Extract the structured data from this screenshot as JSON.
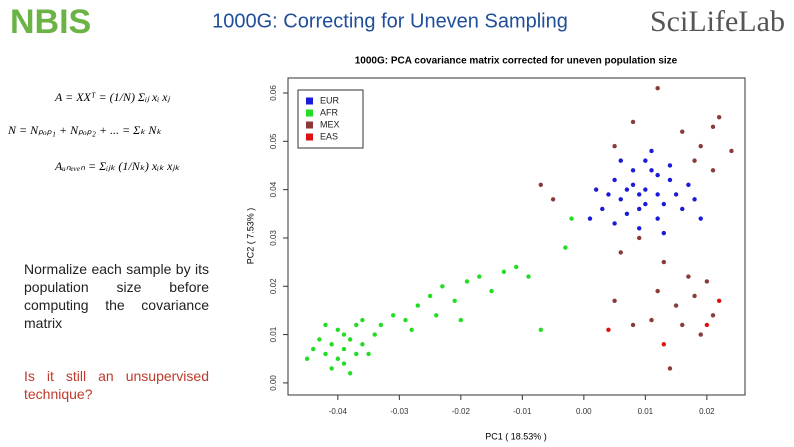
{
  "slide": {
    "logo_left": "NBIS",
    "title": "1000G: Correcting for Uneven Sampling",
    "logo_right": "SciLifeLab",
    "equations": [
      "A = XXᵀ = (1/N) Σᵢⱼ xᵢ xⱼ",
      "N = Nₚₒₚ₁ + Nₚₒₚ₂ + ... = Σₖ Nₖ",
      "Aᵤₙₑᵥₑₙ = Σᵢⱼₖ (1/Nₖ) xᵢₖ xⱼₖ"
    ],
    "body": "Normalize each sample by its population size before computing the covariance matrix",
    "question": "Is it still an unsupervised technique?"
  },
  "chart_data": {
    "type": "scatter",
    "title": "1000G: PCA covariance matrix corrected for uneven population size",
    "x_label": "PC1 ( 18.53% )",
    "y_label": "PC2 ( 7.53% )",
    "xlim": [
      -0.0481,
      0.0262
    ],
    "ylim": [
      -0.0025,
      0.0631
    ],
    "xticks": [
      -0.04,
      -0.03,
      -0.02,
      -0.01,
      {
        "value": 0,
        "label": "0.00"
      },
      0.01,
      0.02
    ],
    "yticks": [
      {
        "value": 0,
        "label": "0.00"
      },
      0.01,
      0.02,
      0.03,
      0.04,
      0.05,
      0.06
    ],
    "legend": "top-left",
    "series": [
      {
        "name": "EUR",
        "color": "#1a1adb",
        "x": [
          0.01,
          0.008,
          0.012,
          0.006,
          0.014,
          0.009,
          0.011,
          0.005,
          0.013,
          0.007,
          0.015,
          0.01,
          0.004,
          0.016,
          0.008,
          0.012,
          0.003,
          0.017,
          0.009,
          0.011,
          0.002,
          0.014,
          0.006,
          0.018,
          0.013,
          0.001,
          0.01,
          0.007,
          0.012,
          0.009,
          0.019,
          0.005
        ],
        "y": [
          0.04,
          0.041,
          0.039,
          0.038,
          0.042,
          0.036,
          0.044,
          0.042,
          0.037,
          0.035,
          0.039,
          0.046,
          0.039,
          0.036,
          0.044,
          0.034,
          0.036,
          0.041,
          0.032,
          0.048,
          0.04,
          0.045,
          0.046,
          0.038,
          0.031,
          0.034,
          0.037,
          0.04,
          0.043,
          0.039,
          0.034,
          0.033
        ]
      },
      {
        "name": "AFR",
        "color": "#22dd22",
        "x": [
          -0.039,
          -0.041,
          -0.037,
          -0.04,
          -0.038,
          -0.042,
          -0.036,
          -0.039,
          -0.043,
          -0.035,
          -0.04,
          -0.037,
          -0.041,
          -0.034,
          -0.044,
          -0.038,
          -0.036,
          -0.033,
          -0.042,
          -0.039,
          -0.031,
          -0.029,
          -0.027,
          -0.025,
          -0.023,
          -0.021,
          -0.019,
          -0.017,
          -0.015,
          -0.013,
          -0.011,
          -0.009,
          -0.007,
          -0.028,
          -0.024,
          -0.02,
          -0.003,
          -0.002,
          -0.045
        ],
        "y": [
          0.007,
          0.008,
          0.006,
          0.005,
          0.009,
          0.006,
          0.008,
          0.004,
          0.009,
          0.006,
          0.011,
          0.012,
          0.003,
          0.01,
          0.007,
          0.002,
          0.013,
          0.012,
          0.012,
          0.01,
          0.014,
          0.013,
          0.016,
          0.018,
          0.02,
          0.017,
          0.021,
          0.022,
          0.019,
          0.023,
          0.024,
          0.022,
          0.011,
          0.011,
          0.014,
          0.013,
          0.028,
          0.034,
          0.005
        ]
      },
      {
        "name": "MEX",
        "color": "#8b3a3a",
        "x": [
          0.012,
          0.008,
          0.016,
          0.021,
          0.024,
          0.022,
          0.019,
          0.021,
          0.018,
          -0.007,
          -0.005,
          0.005,
          0.009,
          0.013,
          0.017,
          0.02,
          0.012,
          0.015,
          0.011,
          0.016,
          0.021,
          0.008,
          0.019,
          0.005,
          0.014,
          0.006,
          0.018
        ],
        "y": [
          0.061,
          0.054,
          0.052,
          0.053,
          0.048,
          0.055,
          0.049,
          0.044,
          0.046,
          0.041,
          0.038,
          0.049,
          0.03,
          0.025,
          0.022,
          0.021,
          0.019,
          0.016,
          0.013,
          0.012,
          0.014,
          0.012,
          0.01,
          0.017,
          0.003,
          0.027,
          0.018
        ]
      },
      {
        "name": "EAS",
        "color": "#dd1111",
        "x": [
          0.022,
          0.02,
          0.004,
          0.013
        ],
        "y": [
          0.017,
          0.012,
          0.011,
          0.008
        ]
      }
    ]
  }
}
